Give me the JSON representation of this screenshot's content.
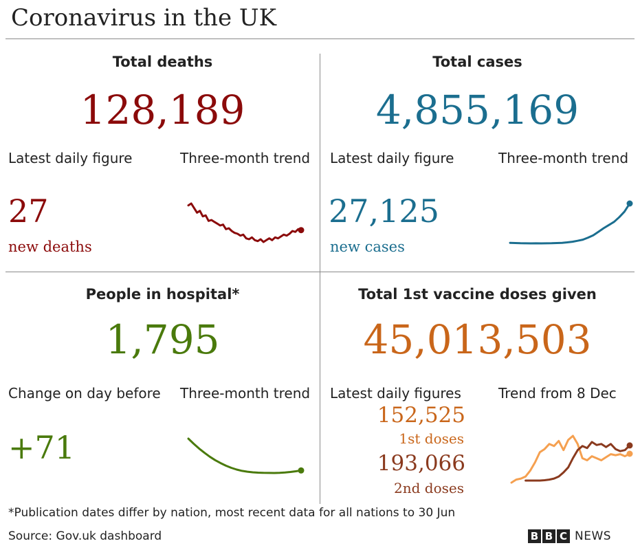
{
  "title": "Coronavirus in the UK",
  "colors": {
    "deaths": "#8b0a0a",
    "cases": "#1b6e8f",
    "hospital": "#4a7a0c",
    "vaccine": "#c9661a",
    "first_doses_line": "#f5a050",
    "second_doses_line": "#8a3a1e"
  },
  "panels": {
    "deaths": {
      "heading": "Total deaths",
      "total": "128,189",
      "latest_label": "Latest daily figure",
      "trend_label": "Three-month trend",
      "latest_value": "27",
      "latest_unit": "new deaths"
    },
    "cases": {
      "heading": "Total cases",
      "total": "4,855,169",
      "latest_label": "Latest daily figure",
      "trend_label": "Three-month trend",
      "latest_value": "27,125",
      "latest_unit": "new cases"
    },
    "hospital": {
      "heading": "People in hospital*",
      "total": "1,795",
      "latest_label": "Change on day before",
      "trend_label": "Three-month trend",
      "latest_value": "+71"
    },
    "vaccine": {
      "heading": "Total 1st vaccine doses given",
      "total": "45,013,503",
      "latest_label": "Latest daily figures",
      "trend_label": "Trend from 8 Dec",
      "first_value": "152,525",
      "first_unit": "1st doses",
      "second_value": "193,066",
      "second_unit": "2nd doses"
    }
  },
  "footnote": "*Publication dates differ by nation, most recent data for all nations to 30 Jun",
  "source": "Source: Gov.uk dashboard",
  "brand": {
    "letters": [
      "B",
      "B",
      "C"
    ],
    "word": "NEWS"
  },
  "chart_data": [
    {
      "type": "line",
      "panel": "deaths",
      "series": [
        {
          "values": [
            58,
            60,
            55,
            50,
            52,
            46,
            47,
            41,
            42,
            40,
            38,
            36,
            37,
            32,
            33,
            30,
            28,
            27,
            25,
            26,
            22,
            21,
            23,
            20,
            19,
            21,
            18,
            20,
            22,
            20,
            23,
            22,
            24,
            26,
            25,
            27,
            30,
            29,
            32,
            31
          ]
        }
      ]
    },
    {
      "type": "line",
      "panel": "cases",
      "series": [
        {
          "values": [
            2200,
            2050,
            1950,
            1900,
            1850,
            1880,
            1860,
            1900,
            1950,
            2050,
            2200,
            2500,
            2900,
            3500,
            4200,
            5500,
            7000,
            9200,
            11500,
            13500,
            15500,
            18500,
            22000,
            27125
          ]
        }
      ]
    },
    {
      "type": "line",
      "panel": "hospital",
      "series": [
        {
          "values": [
            5500,
            4900,
            4350,
            3850,
            3400,
            3000,
            2650,
            2350,
            2100,
            1900,
            1750,
            1650,
            1580,
            1540,
            1520,
            1510,
            1500,
            1520,
            1560,
            1620,
            1700,
            1795
          ]
        }
      ]
    },
    {
      "type": "line",
      "panel": "vaccine",
      "series": [
        {
          "values": [
            10,
            25,
            30,
            40,
            70,
            110,
            160,
            175,
            200,
            190,
            215,
            170,
            220,
            240,
            200,
            130,
            120,
            140,
            130,
            120,
            135,
            150,
            145,
            150,
            140,
            152
          ]
        },
        {
          "values": [
            20,
            20,
            20,
            20,
            22,
            25,
            30,
            40,
            60,
            85,
            130,
            170,
            190,
            180,
            210,
            195,
            200,
            185,
            200,
            175,
            165,
            170,
            193
          ]
        }
      ]
    }
  ]
}
